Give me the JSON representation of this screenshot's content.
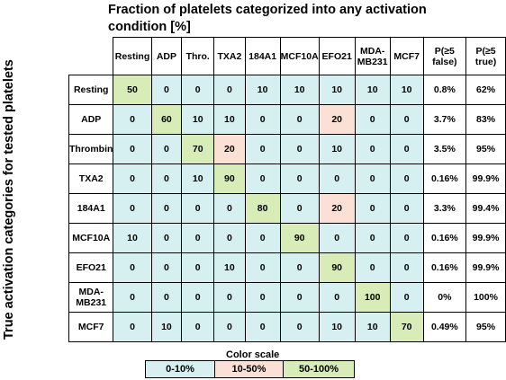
{
  "chart_data": {
    "type": "heatmap",
    "title": "Fraction of platelets categorized into any activation condition [%]",
    "ylabel": "True activation categories for tested platelets",
    "columns": [
      "Resting",
      "ADP",
      "Thro.",
      "TXA2",
      "184A1",
      "MCF10A",
      "EFO21",
      "MDA-MB231",
      "MCF7",
      "P(≥5 false)",
      "P(≥5 true)"
    ],
    "rows": [
      {
        "label": "Resting",
        "values": [
          50,
          0,
          0,
          0,
          10,
          10,
          10,
          10,
          10
        ],
        "p_false": "0.8%",
        "p_true": "62%"
      },
      {
        "label": "ADP",
        "values": [
          0,
          60,
          10,
          10,
          0,
          0,
          20,
          0,
          0
        ],
        "p_false": "3.7%",
        "p_true": "83%"
      },
      {
        "label": "Thrombin",
        "values": [
          0,
          0,
          70,
          20,
          0,
          0,
          10,
          0,
          0
        ],
        "p_false": "3.5%",
        "p_true": "95%"
      },
      {
        "label": "TXA2",
        "values": [
          0,
          0,
          10,
          90,
          0,
          0,
          0,
          0,
          0
        ],
        "p_false": "0.16%",
        "p_true": "99.9%"
      },
      {
        "label": "184A1",
        "values": [
          0,
          0,
          0,
          0,
          80,
          0,
          20,
          0,
          0
        ],
        "p_false": "3.3%",
        "p_true": "99.4%"
      },
      {
        "label": "MCF10A",
        "values": [
          10,
          0,
          0,
          0,
          0,
          90,
          0,
          0,
          0
        ],
        "p_false": "0.16%",
        "p_true": "99.9%"
      },
      {
        "label": "EFO21",
        "values": [
          0,
          0,
          0,
          10,
          0,
          0,
          90,
          0,
          0
        ],
        "p_false": "0.16%",
        "p_true": "99.9%"
      },
      {
        "label": "MDA-MB231",
        "values": [
          0,
          0,
          0,
          0,
          0,
          0,
          0,
          100,
          0
        ],
        "p_false": "0%",
        "p_true": "100%"
      },
      {
        "label": "MCF7",
        "values": [
          0,
          10,
          0,
          0,
          0,
          0,
          10,
          10,
          70
        ],
        "p_false": "0.49%",
        "p_true": "95%"
      }
    ],
    "color_scale": {
      "title": "Color scale",
      "bins": [
        {
          "label": "0-10%",
          "color": "#d6f0f1"
        },
        {
          "label": "10-50%",
          "color": "#fbe1d5"
        },
        {
          "label": "50-100%",
          "color": "#d7ecb6"
        }
      ]
    }
  }
}
